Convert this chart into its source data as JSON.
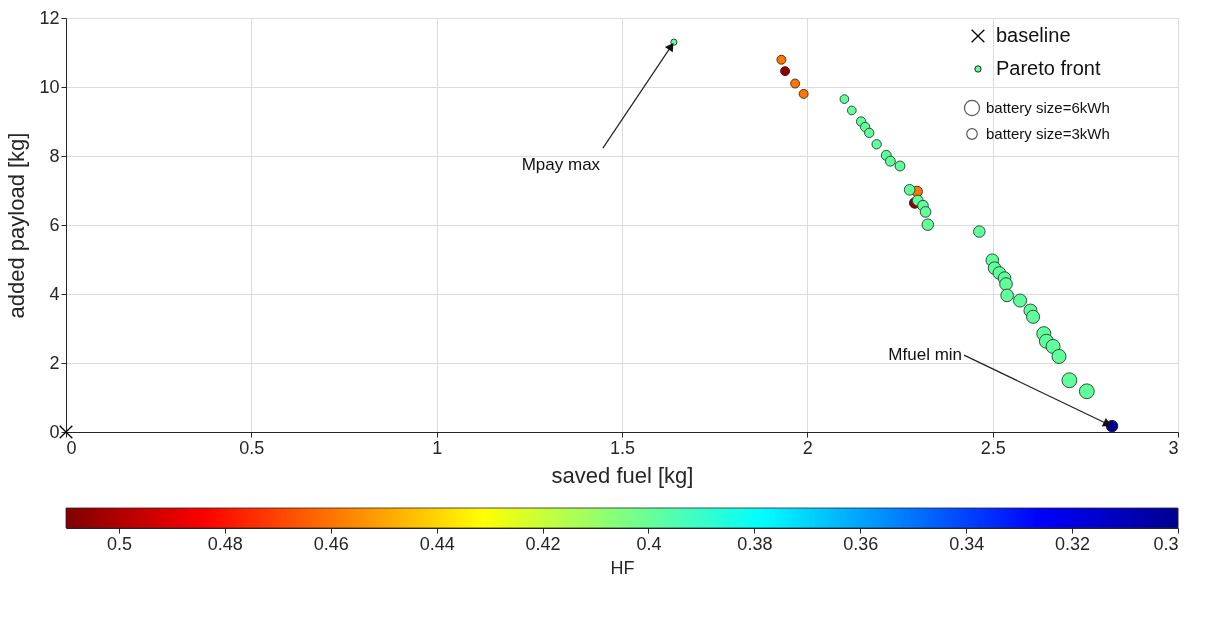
{
  "chart_data": {
    "type": "scatter",
    "xlabel": "saved fuel [kg]",
    "ylabel": "added payload [kg]",
    "clabel": "HF",
    "xlim": [
      0,
      3
    ],
    "xticks": [
      0,
      0.5,
      1,
      1.5,
      2,
      2.5,
      3
    ],
    "ylim": [
      0,
      12
    ],
    "yticks": [
      0,
      2,
      4,
      6,
      8,
      10,
      12
    ],
    "clim": [
      0.51,
      0.3
    ],
    "cticks": [
      0.5,
      0.48,
      0.46,
      0.44,
      0.42,
      0.4,
      0.38,
      0.36,
      0.34,
      0.32,
      0.3
    ],
    "grid": true,
    "legend": "top right",
    "size_legend": [
      {
        "value": 6,
        "label": "battery size=6kWh"
      },
      {
        "value": 3,
        "label": "battery size=3kWh"
      }
    ],
    "series": [
      {
        "name": "baseline",
        "marker": "cross",
        "color": "#000000",
        "x": [
          0
        ],
        "values": [
          0
        ]
      },
      {
        "name": "Pareto front",
        "marker": "circle",
        "x": [
          1.64,
          1.93,
          1.94,
          1.967,
          1.99,
          2.1,
          2.12,
          2.145,
          2.156,
          2.167,
          2.187,
          2.213,
          2.224,
          2.25,
          2.29,
          2.296,
          2.276,
          2.298,
          2.312,
          2.319,
          2.325,
          2.464,
          2.499,
          2.505,
          2.518,
          2.532,
          2.536,
          2.539,
          2.574,
          2.602,
          2.609,
          2.638,
          2.645,
          2.663,
          2.679,
          2.707,
          2.754,
          2.822
        ],
        "values": [
          11.3,
          10.79,
          10.46,
          10.1,
          9.8,
          9.65,
          9.32,
          9.0,
          8.84,
          8.67,
          8.34,
          8.02,
          7.85,
          7.71,
          6.64,
          6.97,
          7.02,
          6.71,
          6.56,
          6.38,
          6.01,
          5.81,
          4.98,
          4.75,
          4.61,
          4.46,
          4.29,
          3.96,
          3.81,
          3.52,
          3.34,
          2.85,
          2.63,
          2.48,
          2.19,
          1.5,
          1.18,
          0.17
        ],
        "cvalues": [
          0.4,
          0.461,
          0.506,
          0.461,
          0.461,
          0.4,
          0.4,
          0.4,
          0.4,
          0.4,
          0.4,
          0.4,
          0.4,
          0.4,
          0.506,
          0.461,
          0.4,
          0.4,
          0.4,
          0.4,
          0.4,
          0.4,
          0.4,
          0.4,
          0.4,
          0.4,
          0.4,
          0.4,
          0.4,
          0.4,
          0.4,
          0.4,
          0.4,
          0.4,
          0.4,
          0.4,
          0.4,
          0.302
        ],
        "colors": [
          "#60ff9c",
          "#ff6e00",
          "#950000",
          "#ff6e00",
          "#ff6e00",
          "#60ff9c",
          "#60ff9c",
          "#60ff9c",
          "#60ff9c",
          "#60ff9c",
          "#60ff9c",
          "#60ff9c",
          "#60ff9c",
          "#60ff9c",
          "#950000",
          "#ff6e00",
          "#60ff9c",
          "#60ff9c",
          "#60ff9c",
          "#60ff9c",
          "#60ff9c",
          "#60ff9c",
          "#60ff9c",
          "#60ff9c",
          "#60ff9c",
          "#60ff9c",
          "#60ff9c",
          "#60ff9c",
          "#60ff9c",
          "#60ff9c",
          "#60ff9c",
          "#60ff9c",
          "#60ff9c",
          "#60ff9c",
          "#60ff9c",
          "#60ff9c",
          "#60ff9c",
          "#000096"
        ],
        "sizes": [
          1.0,
          2.1,
          2.1,
          2.1,
          2.1,
          2.0,
          2.0,
          2.3,
          2.3,
          2.3,
          2.3,
          2.6,
          2.6,
          2.6,
          3.0,
          3.0,
          3.0,
          3.0,
          3.0,
          3.0,
          3.5,
          3.5,
          4.2,
          4.2,
          4.2,
          4.2,
          4.2,
          4.2,
          4.5,
          4.5,
          4.5,
          5.2,
          5.2,
          5.2,
          5.2,
          5.8,
          5.8,
          3.5
        ]
      }
    ],
    "annotations": [
      {
        "text": "Mpay max",
        "x": 1.64,
        "y": 11.3
      },
      {
        "text": "Mfuel min",
        "x": 2.822,
        "y": 0.17
      }
    ]
  }
}
